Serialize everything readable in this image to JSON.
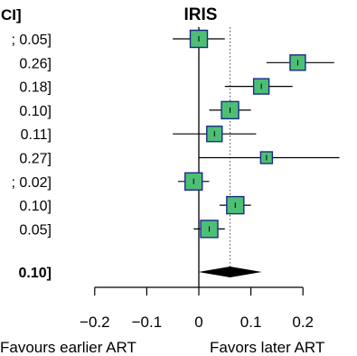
{
  "chart_data": {
    "type": "forest",
    "panel_title": "IRIS",
    "ci_header": "CI]",
    "rows": [
      {
        "ci_label": "; 0.05]",
        "estimate": 0.0,
        "lower": -0.05,
        "upper": 0.05,
        "weight": "large"
      },
      {
        "ci_label": "0.26]",
        "estimate": 0.19,
        "lower": 0.13,
        "upper": 0.26,
        "weight": "medium"
      },
      {
        "ci_label": "0.18]",
        "estimate": 0.12,
        "lower": 0.05,
        "upper": 0.18,
        "weight": "medium"
      },
      {
        "ci_label": "0.10]",
        "estimate": 0.06,
        "lower": 0.02,
        "upper": 0.1,
        "weight": "large"
      },
      {
        "ci_label": "0.11]",
        "estimate": 0.03,
        "lower": -0.05,
        "upper": 0.11,
        "weight": "medium"
      },
      {
        "ci_label": "0.27]",
        "estimate": 0.13,
        "lower": 0.0,
        "upper": 0.27,
        "weight": "small"
      },
      {
        "ci_label": "; 0.02]",
        "estimate": -0.01,
        "lower": -0.04,
        "upper": 0.02,
        "weight": "large"
      },
      {
        "ci_label": "0.10]",
        "estimate": 0.07,
        "lower": 0.04,
        "upper": 0.1,
        "weight": "large"
      },
      {
        "ci_label": "0.05]",
        "estimate": 0.02,
        "lower": -0.01,
        "upper": 0.05,
        "weight": "large"
      }
    ],
    "summary": {
      "ci_label": "0.10]",
      "estimate": 0.06,
      "lower": 0.02,
      "upper": 0.1
    },
    "reference_line": 0,
    "pooled_line": 0.06,
    "x_ticks": [
      -0.2,
      -0.1,
      0,
      0.1,
      0.2
    ],
    "x_tick_labels": [
      "−0.2",
      "−0.1",
      "0",
      "0.1",
      "0.2"
    ],
    "xlim": [
      -0.2,
      0.2
    ],
    "x_label_left": "Favours earlier ART",
    "x_label_right": "Favors later ART",
    "colors": {
      "box_fill": "#4dbf74",
      "box_stroke": "#1a2a8a",
      "line": "#000000",
      "summary": "#000000"
    }
  }
}
